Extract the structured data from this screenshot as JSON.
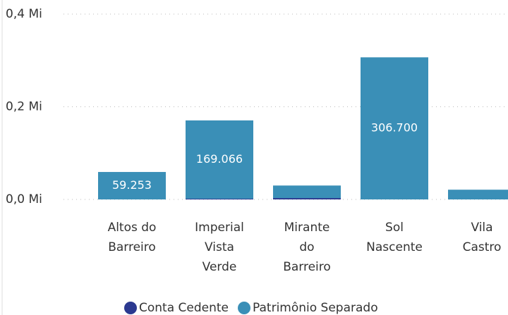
{
  "chart_data": {
    "type": "stacked_bar",
    "categories": [
      "Altos do Barreiro",
      "Imperial Vista Verde",
      "Mirante do Barreiro",
      "Sol Nascente",
      "Vila Castro"
    ],
    "series": [
      {
        "name": "Conta Cedente",
        "color": "#2b3990",
        "values": [
          null,
          1500,
          3000,
          null,
          null
        ]
      },
      {
        "name": "Patrimônio Separado",
        "color": "#3a8fb7",
        "values": [
          59253,
          169066,
          27000,
          306700,
          21000
        ],
        "value_labels": [
          "59.253",
          "169.066",
          null,
          "306.700",
          null
        ]
      }
    ],
    "ylim": [
      0,
      400000
    ],
    "yticks": [
      {
        "value": 0,
        "label": "0,0 Mi"
      },
      {
        "value": 200000,
        "label": "0,2 Mi"
      },
      {
        "value": 400000,
        "label": "0,4 Mi"
      }
    ],
    "grid": true,
    "legend": "bottom"
  }
}
